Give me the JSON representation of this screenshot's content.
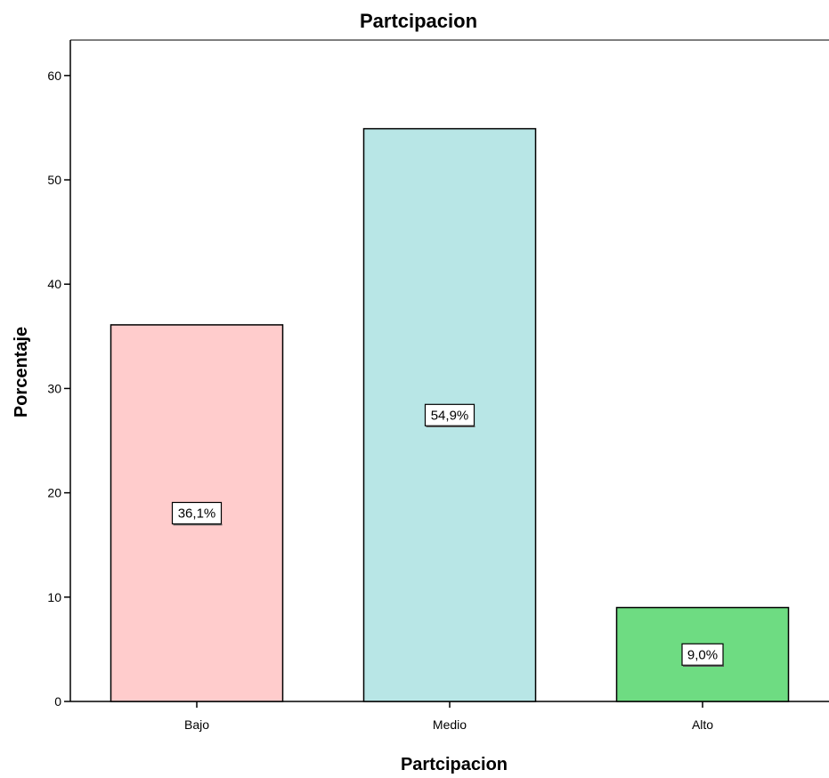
{
  "chart_data": {
    "type": "bar",
    "title": "Partcipacion",
    "xlabel": "Partcipacion",
    "ylabel": "Porcentaje",
    "categories": [
      "Bajo",
      "Medio",
      "Alto"
    ],
    "values": [
      36.1,
      54.9,
      9.0
    ],
    "data_labels": [
      "36,1%",
      "54,9%",
      "9,0%"
    ],
    "colors": [
      "#ffcccc",
      "#b8e6e6",
      "#6edc82"
    ],
    "yticks": [
      0,
      10,
      20,
      30,
      40,
      50,
      60
    ],
    "ylim": [
      0,
      63.4
    ],
    "grid": false,
    "legend": "none"
  }
}
